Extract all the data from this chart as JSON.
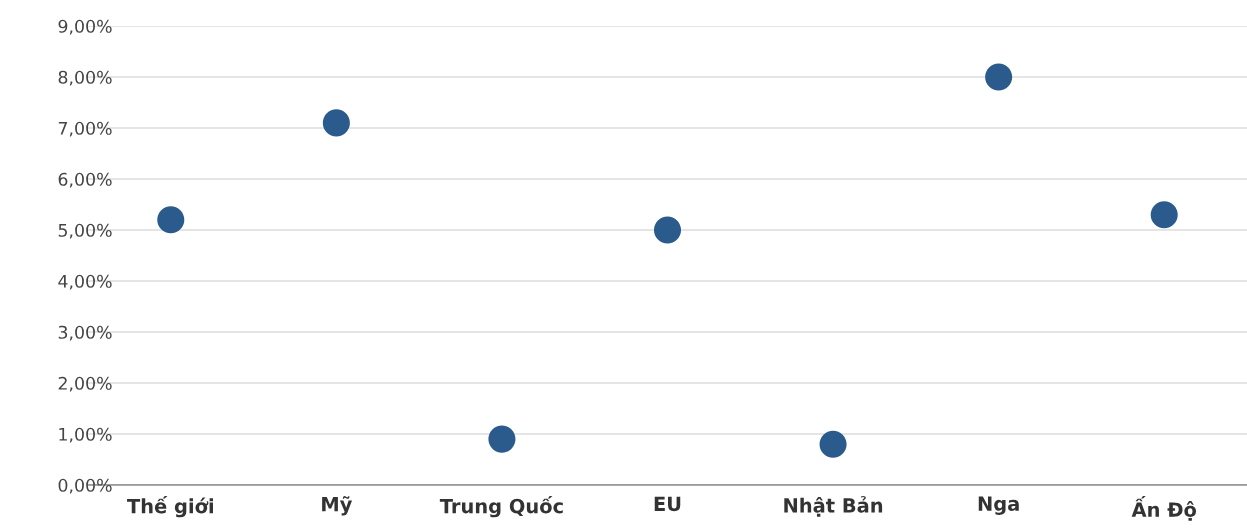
{
  "chart_data": {
    "type": "scatter",
    "categories": [
      "Thế giới",
      "Mỹ",
      "Trung Quốc",
      "EU",
      "Nhật Bản",
      "Nga",
      "Ấn Độ"
    ],
    "series": [
      {
        "color": "#2b5b8c",
        "values": [
          5.2,
          7.1,
          0.9,
          5.0,
          0.8,
          8.0,
          5.3
        ]
      }
    ],
    "ylim": [
      0,
      9
    ],
    "yticks": [
      {
        "value": 0,
        "label": "0,00%"
      },
      {
        "value": 1,
        "label": "1,00%"
      },
      {
        "value": 2,
        "label": "2,00%"
      },
      {
        "value": 3,
        "label": "3,00%"
      },
      {
        "value": 4,
        "label": "4,00%"
      },
      {
        "value": 5,
        "label": "5,00%"
      },
      {
        "value": 6,
        "label": "6,00%"
      },
      {
        "value": 7,
        "label": "7,00%"
      },
      {
        "value": 8,
        "label": "8,00%"
      },
      {
        "value": 9,
        "label": "9,00%"
      }
    ],
    "grid": "y",
    "marker": "circle"
  }
}
